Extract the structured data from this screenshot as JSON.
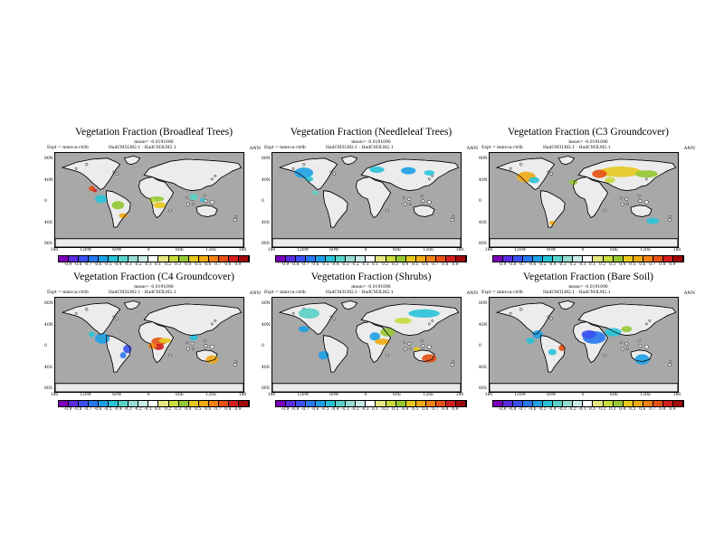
{
  "panels": [
    {
      "title": "Vegetation Fraction (Broadleaf Trees)",
      "mean": "mean= -0.0191096",
      "expt": "Expt = mmvca-ctrlb",
      "diff": "HadCM3LM2.1 - HadCM3LM2.1",
      "season": "ANN",
      "has_colorbar": true
    },
    {
      "title": "Vegetation Fraction (Needleleaf Trees)",
      "mean": "mean= -0.0191096",
      "expt": "Expt = mmvca-ctrlb",
      "diff": "HadCM3LM2.1 - HadCM3LM2.1",
      "season": "ANN",
      "has_colorbar": true
    },
    {
      "title": "Vegetation Fraction (C3 Groundcover)",
      "mean": "mean= -0.0191096",
      "expt": "Expt = mmvca-ctrlb",
      "diff": "HadCM3LM2.1 - HadCM3LM2.1",
      "season": "ANN",
      "has_colorbar": true
    },
    {
      "title": "Vegetation Fraction (C4 Groundcover)",
      "mean": "mean= -0.0191096",
      "expt": "Expt = mmvca-ctrlb",
      "diff": "HadCM3LM2.1 - HadCM3LM2.1",
      "season": "ANN",
      "has_colorbar": true
    },
    {
      "title": "Vegetation Fraction (Shrubs)",
      "mean": "mean= -0.0191096",
      "expt": "Expt = mmvca-ctrlb",
      "diff": "HadCM3LM2.1 - HadCM3LM2.1",
      "season": "ANN",
      "has_colorbar": true
    },
    {
      "title": "Vegetation Fraction (Bare Soil)",
      "mean": "mean= -0.0191096",
      "expt": "Expt = mmvca-ctrlb",
      "diff": "HadCM3LM2.1 - HadCM3LM2.1",
      "season": "ANN",
      "has_colorbar": true
    }
  ],
  "lat_labels": [
    "80N",
    "40N",
    "0",
    "40S",
    "80S"
  ],
  "lon_labels": [
    "180",
    "120W",
    "60W",
    "0",
    "60E",
    "120E",
    "180"
  ],
  "colorbar": {
    "labels": [
      "-0.9",
      "-0.8",
      "-0.7",
      "-0.6",
      "-0.5",
      "-0.4",
      "-0.3",
      "-0.2",
      "-0.1",
      "0.1",
      "0.2",
      "0.3",
      "0.4",
      "0.5",
      "0.6",
      "0.7",
      "0.8",
      "0.9"
    ],
    "colors": [
      "#7b00b8",
      "#5a2ce0",
      "#3c50f0",
      "#2878f0",
      "#1ea0e6",
      "#28c3d7",
      "#5ad2c8",
      "#96dcd2",
      "#c8ebe6",
      "#ffffff",
      "#e6e682",
      "#c8dc3c",
      "#96c832",
      "#e6c81e",
      "#f0aa14",
      "#f08214",
      "#e65014",
      "#d21e1e",
      "#a00a0a"
    ]
  },
  "colors": {
    "ocean": "#a8a8a8",
    "land_neutral": "#ececec",
    "coast": "#000000"
  }
}
